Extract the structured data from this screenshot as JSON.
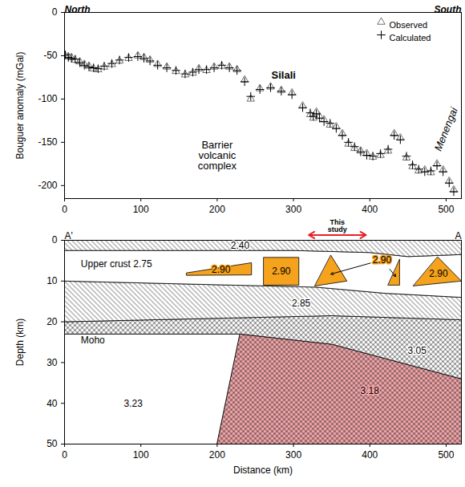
{
  "chart_data": [
    {
      "type": "scatter",
      "direction_labels": [
        "North",
        "South"
      ],
      "ylabel": "Bouguer anomaly (mGal)",
      "xlim": [
        0,
        520
      ],
      "xticks": [
        0,
        100,
        200,
        300,
        400,
        500
      ],
      "ylim": [
        -215,
        0
      ],
      "yticks": [
        0,
        -50,
        -100,
        -150,
        -200
      ],
      "legend": "top-right",
      "x": [
        1,
        5,
        9,
        14,
        20,
        26,
        32,
        38,
        44,
        52,
        62,
        72,
        84,
        96,
        104,
        112,
        122,
        134,
        146,
        158,
        168,
        176,
        186,
        196,
        206,
        216,
        226,
        236,
        244,
        256,
        270,
        284,
        298,
        312,
        322,
        326,
        330,
        334,
        340,
        348,
        356,
        364,
        372,
        380,
        388,
        396,
        404,
        414,
        424,
        432,
        440,
        448,
        456,
        464,
        472,
        480,
        488,
        496,
        504,
        510
      ],
      "series": [
        {
          "name": "Observed",
          "color": "#707070",
          "marker": "triangle",
          "values": [
            -50,
            -51,
            -52,
            -55,
            -57,
            -60,
            -62,
            -65,
            -66,
            -63,
            -60,
            -56,
            -53,
            -50,
            -52,
            -55,
            -60,
            -63,
            -68,
            -72,
            -70,
            -65,
            -67,
            -63,
            -62,
            -63,
            -66,
            -78,
            -100,
            -88,
            -86,
            -90,
            -93,
            -108,
            -118,
            -122,
            -115,
            -120,
            -124,
            -130,
            -132,
            -140,
            -152,
            -157,
            -160,
            -163,
            -167,
            -165,
            -160,
            -140,
            -145,
            -168,
            -178,
            -183,
            -182,
            -185,
            -175,
            -182,
            -195,
            -205
          ]
        },
        {
          "name": "Calculated",
          "color": "#000000",
          "marker": "plus",
          "values": [
            -49,
            -52,
            -53,
            -54,
            -58,
            -61,
            -63,
            -64,
            -65,
            -62,
            -59,
            -55,
            -52,
            -51,
            -53,
            -56,
            -61,
            -64,
            -67,
            -71,
            -69,
            -66,
            -66,
            -64,
            -61,
            -64,
            -67,
            -80,
            -97,
            -89,
            -87,
            -91,
            -95,
            -110,
            -116,
            -120,
            -117,
            -122,
            -126,
            -128,
            -134,
            -142,
            -150,
            -155,
            -161,
            -165,
            -166,
            -163,
            -158,
            -142,
            -147,
            -166,
            -176,
            -181,
            -184,
            -183,
            -177,
            -184,
            -197,
            -207
          ]
        }
      ],
      "annotations": [
        {
          "text": "Barrier volcanic complex",
          "x": 200,
          "y": -165
        },
        {
          "text": "Silali",
          "x": 287,
          "y": -73
        },
        {
          "text": "Menengai",
          "x": 500,
          "y": -135
        }
      ]
    },
    {
      "type": "section",
      "direction_labels": [
        "A'",
        "A"
      ],
      "xlabel": "Distance (km)",
      "ylabel": "Depth (km)",
      "xlim": [
        0,
        520
      ],
      "xticks": [
        0,
        100,
        200,
        300,
        400,
        500
      ],
      "ylim": [
        0,
        50
      ],
      "yticks": [
        0,
        10,
        20,
        30,
        40,
        50
      ],
      "polygons": [
        {
          "label": "3.23",
          "color": "#ffffff",
          "points": [
            [
              0,
              23
            ],
            [
              230,
              23
            ],
            [
              200,
              50
            ],
            [
              0,
              50
            ]
          ],
          "label_x": 90,
          "label_y": 40
        },
        {
          "label": "3.18",
          "color": "#f4a6aa",
          "line_style": "cross-hatched",
          "points": [
            [
              230,
              23
            ],
            [
              350,
              25.5
            ],
            [
              520,
              34
            ],
            [
              520,
              50
            ],
            [
              200,
              50
            ]
          ],
          "label_x": 400,
          "label_y": 37
        },
        {
          "label": "3.05",
          "color": "#ffffff",
          "line_style": "cross-hatched",
          "points": [
            [
              0,
              20
            ],
            [
              350,
              18.5
            ],
            [
              520,
              19.5
            ],
            [
              520,
              34
            ],
            [
              350,
              25.5
            ],
            [
              230,
              23
            ],
            [
              0,
              23
            ]
          ],
          "label_x": 462,
          "label_y": 27
        },
        {
          "label": "2.85",
          "color": "#ffffff",
          "line_style": "hatched",
          "points": [
            [
              0,
              10
            ],
            [
              330,
              11.5
            ],
            [
              420,
              13
            ],
            [
              520,
              14
            ],
            [
              520,
              19.5
            ],
            [
              350,
              18.5
            ],
            [
              0,
              20
            ]
          ],
          "label_x": 310,
          "label_y": 15.5
        },
        {
          "label": "Upper crust 2.75",
          "color": "#ffffff",
          "points": [
            [
              0,
              2.5
            ],
            [
              300,
              2.5
            ],
            [
              400,
              3
            ],
            [
              450,
              4
            ],
            [
              520,
              3.5
            ],
            [
              520,
              14
            ],
            [
              420,
              13
            ],
            [
              330,
              11.5
            ],
            [
              0,
              10
            ]
          ],
          "label_x": 68,
          "label_y": 5.8
        },
        {
          "label": "2.40",
          "color": "#ffffff",
          "line_style": "hatched",
          "points": [
            [
              0,
              0
            ],
            [
              520,
              0
            ],
            [
              520,
              3.5
            ],
            [
              450,
              4
            ],
            [
              400,
              3
            ],
            [
              300,
              2.5
            ],
            [
              0,
              2.5
            ]
          ],
          "label_x": 230,
          "label_y": 1.3
        },
        {
          "label": "2.90",
          "color": "#f5a21d",
          "points": [
            [
              160,
              8
            ],
            [
              245,
              5.5
            ],
            [
              245,
              8.5
            ],
            [
              160,
              8.6
            ]
          ],
          "label_x": 205,
          "label_y": 7.3
        },
        {
          "label": "2.90",
          "color": "#f5a21d",
          "points": [
            [
              261,
              4.2
            ],
            [
              307,
              4.2
            ],
            [
              307,
              11
            ],
            [
              261,
              11
            ]
          ],
          "label_x": 284,
          "label_y": 7.6
        },
        {
          "label": "2.90",
          "color": "#f5a21d",
          "points": [
            [
              349,
              3.7
            ],
            [
              370,
              10
            ],
            [
              328,
              11.2
            ]
          ],
          "label_x": 416,
          "label_y": 4.8
        },
        {
          "label": "2.90",
          "color": "#f5a21d",
          "points": [
            [
              439,
              4.7
            ],
            [
              439,
              11
            ],
            [
              424,
              11
            ]
          ],
          "label_x": 416,
          "label_y": 4.8
        },
        {
          "label": "2.90",
          "color": "#f5a21d",
          "points": [
            [
              489,
              4.1
            ],
            [
              520,
              10
            ],
            [
              457,
              11.2
            ]
          ],
          "label_x": 490,
          "label_y": 8.2
        }
      ],
      "annotations": [
        {
          "text": "Moho",
          "x": 37,
          "y": 24.5
        },
        {
          "text": "This study",
          "span": [
            320,
            395
          ],
          "y": -1.3,
          "color": "#e8202a"
        }
      ]
    }
  ]
}
